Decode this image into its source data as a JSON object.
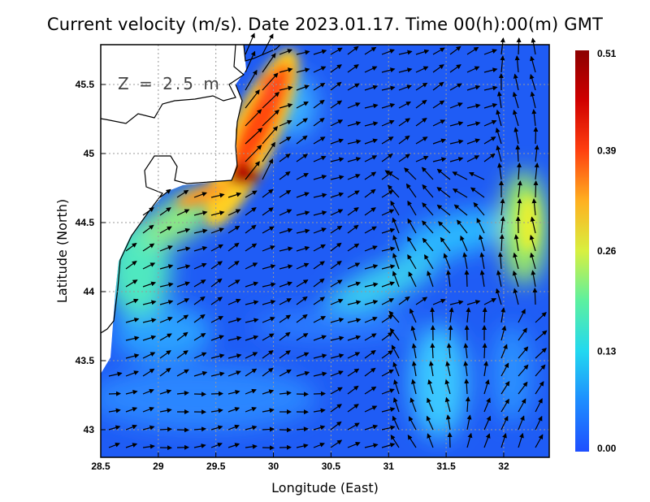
{
  "title": "Current velocity (m/s). Date 2023.01.17. Time 00(h):00(m) GMT",
  "depth_label": "Z = 2.5 m",
  "x_axis": {
    "label": "Longitude (East)",
    "ticks": [
      "28.5",
      "29",
      "29.5",
      "30",
      "30.5",
      "31",
      "31.5",
      "32"
    ],
    "range": [
      28.5,
      32.4
    ]
  },
  "y_axis": {
    "label": "Latitude (North)",
    "ticks": [
      "43",
      "43.5",
      "44",
      "44.5",
      "45",
      "45.5"
    ],
    "range": [
      42.8,
      45.8
    ]
  },
  "colorbar": {
    "labels": [
      "0.51",
      "0.39",
      "0.26",
      "0.13",
      "0.00"
    ],
    "min": 0.0,
    "max": 0.51,
    "colors": [
      "#1e4fff",
      "#1e8cff",
      "#22d8f0",
      "#5cf0a0",
      "#d8f040",
      "#ffb020",
      "#ff4010",
      "#d00000",
      "#8c0000"
    ]
  },
  "grid": true
}
